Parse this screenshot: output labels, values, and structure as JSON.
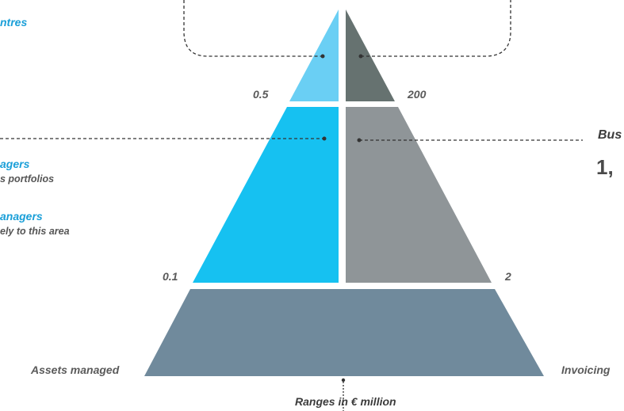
{
  "colors": {
    "top_left": "#6acff4",
    "top_right": "#667270",
    "mid_left": "#16c1f1",
    "mid_right": "#8f9598",
    "base": "#708a9c",
    "accent_text": "#1a9fd8",
    "dashed_line": "#333333"
  },
  "left_labels": {
    "top_fragment": "ntres",
    "managers_1": "agers",
    "managers_1_sub": "s portfolios",
    "managers_2": "anagers",
    "managers_2_sub": "ely to this area"
  },
  "right_labels": {
    "business_fragment": "Bus",
    "number_fragment": "1,"
  },
  "values": {
    "top_left": "0.5",
    "top_right": "200",
    "mid_left": "0.1",
    "mid_right": "2"
  },
  "axis_labels": {
    "left": "Assets managed",
    "right": "Invoicing",
    "bottom": "Ranges in € million"
  }
}
